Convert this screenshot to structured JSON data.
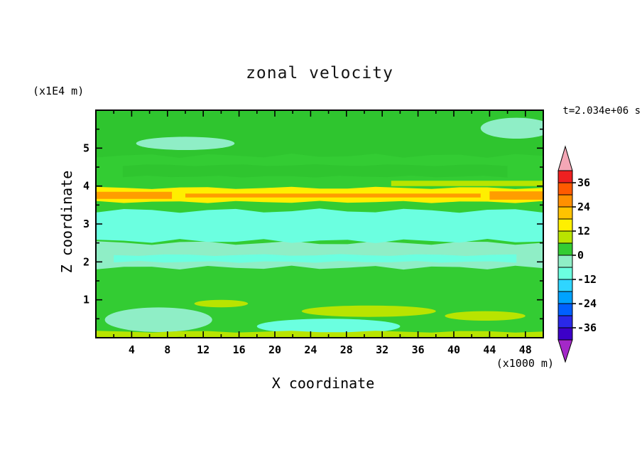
{
  "chart_data": {
    "type": "contour",
    "title": "zonal velocity",
    "time_label": "t=2.034e+06 s",
    "xlabel": "X coordinate",
    "ylabel": "Z coordinate",
    "x_units": "(x1000 m)",
    "z_units": "(x1E4 m)",
    "x_range": [
      0,
      50
    ],
    "z_range": [
      0,
      6
    ],
    "x_ticks_major": [
      4,
      8,
      12,
      16,
      20,
      24,
      28,
      32,
      36,
      40,
      44,
      48
    ],
    "x_ticks_minor": [
      2,
      6,
      10,
      14,
      18,
      22,
      26,
      30,
      34,
      38,
      42,
      46
    ],
    "z_ticks_major": [
      1,
      2,
      3,
      4,
      5
    ],
    "z_ticks_minor": [
      0.5,
      1.5,
      2.5,
      3.5,
      4.5,
      5.5
    ],
    "contour_interval": 6,
    "base_value_band": [
      0,
      6
    ],
    "base_color": "#33cc33",
    "colorbar": {
      "labels": [
        {
          "value": 36,
          "text": "36"
        },
        {
          "value": 24,
          "text": "24"
        },
        {
          "value": 12,
          "text": "12"
        },
        {
          "value": 0,
          "text": "0"
        },
        {
          "value": -12,
          "text": "-12"
        },
        {
          "value": -24,
          "text": "-24"
        },
        {
          "value": -36,
          "text": "-36"
        }
      ],
      "segments": [
        {
          "from": 36,
          "to": 42,
          "color": "#ee2020"
        },
        {
          "from": 30,
          "to": 36,
          "color": "#ff5a00"
        },
        {
          "from": 24,
          "to": 30,
          "color": "#ff9000"
        },
        {
          "from": 18,
          "to": 24,
          "color": "#ffc300"
        },
        {
          "from": 12,
          "to": 18,
          "color": "#fff000"
        },
        {
          "from": 6,
          "to": 12,
          "color": "#b9e400"
        },
        {
          "from": 0,
          "to": 6,
          "color": "#33cc33"
        },
        {
          "from": -6,
          "to": 0,
          "color": "#8feec6"
        },
        {
          "from": -12,
          "to": -6,
          "color": "#6bffe0"
        },
        {
          "from": -18,
          "to": -12,
          "color": "#2fd5ff"
        },
        {
          "from": -24,
          "to": -18,
          "color": "#00a2ff"
        },
        {
          "from": -30,
          "to": -24,
          "color": "#0060ff"
        },
        {
          "from": -36,
          "to": -30,
          "color": "#2a28e8"
        },
        {
          "from": -42,
          "to": -36,
          "color": "#3c00c8"
        }
      ],
      "arrow_top_color": "#f4a7b6",
      "arrow_bottom_color": "#a428c8"
    },
    "regions": [
      {
        "name": "upper-dark-green-band",
        "shape": "band",
        "x": [
          0,
          50
        ],
        "z": [
          4.8,
          6.0
        ],
        "value": 3,
        "color": "#2fc52f",
        "wavy": true
      },
      {
        "name": "mid-dark-green-streak",
        "shape": "band",
        "x": [
          3,
          46
        ],
        "z": [
          4.25,
          4.55
        ],
        "value": 3,
        "color": "#2fc52f",
        "wavy": true
      },
      {
        "name": "pale-green-top-left-patch",
        "shape": "blob",
        "x": [
          4.5,
          15.5
        ],
        "z": [
          4.95,
          5.3
        ],
        "value": -2,
        "color": "#8feec6"
      },
      {
        "name": "pale-green-top-right-patch",
        "shape": "blob",
        "x": [
          43,
          51
        ],
        "z": [
          5.25,
          5.8
        ],
        "value": -2,
        "color": "#8feec6"
      },
      {
        "name": "yellow-green-streak-upper-right",
        "shape": "band",
        "x": [
          33,
          50
        ],
        "z": [
          4.0,
          4.14
        ],
        "value": 8,
        "color": "#b9e400",
        "wavy": false
      },
      {
        "name": "pale-green-band",
        "shape": "band",
        "x": [
          0,
          50
        ],
        "z": [
          1.85,
          2.5
        ],
        "value": -3,
        "color": "#8feec6",
        "wavy": true
      },
      {
        "name": "aqua-streak-inside-pale-band",
        "shape": "band",
        "x": [
          2,
          47
        ],
        "z": [
          2.0,
          2.18
        ],
        "value": -8,
        "color": "#6bffe0",
        "wavy": true
      },
      {
        "name": "aqua-band",
        "shape": "band",
        "x": [
          0,
          50
        ],
        "z": [
          2.55,
          3.35
        ],
        "value": -9,
        "color": "#6bffe0",
        "wavy": true
      },
      {
        "name": "yellow-stripe",
        "shape": "band",
        "x": [
          0,
          50
        ],
        "z": [
          3.58,
          3.95
        ],
        "value": 14,
        "color": "#ffef00",
        "wavy": true
      },
      {
        "name": "orange-core-left",
        "shape": "band",
        "x": [
          0,
          8.5
        ],
        "z": [
          3.66,
          3.85
        ],
        "value": 20,
        "color": "#ff9d00",
        "wavy": false
      },
      {
        "name": "orange-core-middle",
        "shape": "band",
        "x": [
          10,
          43
        ],
        "z": [
          3.7,
          3.8
        ],
        "value": 20,
        "color": "#ff9d00",
        "wavy": false
      },
      {
        "name": "orange-core-right",
        "shape": "band",
        "x": [
          44,
          50
        ],
        "z": [
          3.64,
          3.86
        ],
        "value": 20,
        "color": "#ff9d00",
        "wavy": false
      },
      {
        "name": "pale-green-bottom-left-patch",
        "shape": "blob",
        "x": [
          1,
          13
        ],
        "z": [
          0.15,
          0.8
        ],
        "value": -3,
        "color": "#8feec6"
      },
      {
        "name": "aqua-bottom-middle-patch",
        "shape": "blob",
        "x": [
          18,
          34
        ],
        "z": [
          0.1,
          0.5
        ],
        "value": -8,
        "color": "#6bffe0"
      },
      {
        "name": "yellow-green-patch-mid",
        "shape": "blob",
        "x": [
          23,
          38
        ],
        "z": [
          0.55,
          0.85
        ],
        "value": 8,
        "color": "#b9e400"
      },
      {
        "name": "yellow-green-patch-right",
        "shape": "blob",
        "x": [
          39,
          48
        ],
        "z": [
          0.45,
          0.7
        ],
        "value": 8,
        "color": "#b9e400"
      },
      {
        "name": "yellow-green-patch-left",
        "shape": "blob",
        "x": [
          11,
          17
        ],
        "z": [
          0.8,
          1.0
        ],
        "value": 8,
        "color": "#b9e400"
      },
      {
        "name": "bottom-yellow-green-stripe",
        "shape": "band",
        "x": [
          0,
          50
        ],
        "z": [
          0,
          0.16
        ],
        "value": 8,
        "color": "#b9e400",
        "wavy": true
      }
    ]
  }
}
